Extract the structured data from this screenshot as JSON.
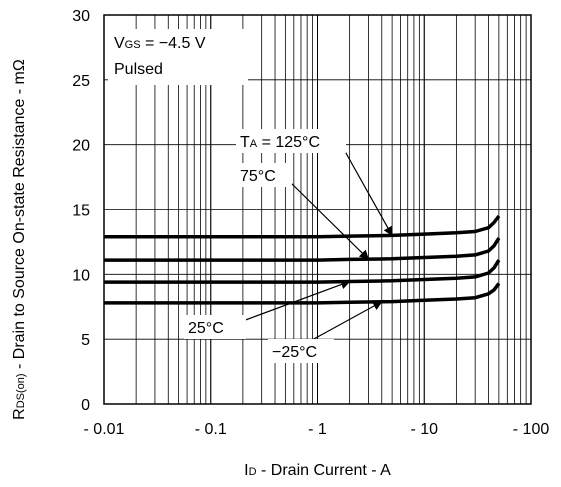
{
  "chart_data": {
    "type": "line",
    "xlabel_main": "I",
    "xlabel_sub": "D",
    "xlabel_rest": " - Drain Current - A",
    "ylabel_main": "R",
    "ylabel_sub": "DS(on)",
    "ylabel_rest": " - Drain to Source On-state Resistance - mΩ",
    "x_scale": "log",
    "xlim": [
      0.01,
      100
    ],
    "ylim": [
      0,
      30
    ],
    "x_ticks": [
      0.01,
      0.1,
      1,
      10,
      100
    ],
    "x_tick_labels": [
      "- 0.01",
      "- 0.1",
      "- 1",
      "- 10",
      "- 100"
    ],
    "y_ticks": [
      0,
      5,
      10,
      15,
      20,
      25,
      30
    ],
    "y_tick_labels": [
      "0",
      "5",
      "10",
      "15",
      "20",
      "25",
      "30"
    ],
    "grid": true,
    "legend_box": {
      "line1_main": "V",
      "line1_sub": "GS",
      "line1_rest": " = −4.5 V",
      "line2": "Pulsed"
    },
    "series": [
      {
        "name": "TA = 125°C",
        "x": [
          0.01,
          1,
          2,
          5,
          10,
          20,
          30,
          40,
          45,
          50
        ],
        "y": [
          12.9,
          12.9,
          12.95,
          13.0,
          13.1,
          13.2,
          13.3,
          13.6,
          14.0,
          14.5
        ]
      },
      {
        "name": "75°C",
        "x": [
          0.01,
          1,
          2,
          5,
          10,
          20,
          30,
          40,
          45,
          50
        ],
        "y": [
          11.1,
          11.1,
          11.15,
          11.2,
          11.3,
          11.4,
          11.5,
          11.8,
          12.2,
          12.8
        ]
      },
      {
        "name": "25°C",
        "x": [
          0.01,
          1,
          2,
          5,
          10,
          20,
          30,
          40,
          45,
          50
        ],
        "y": [
          9.4,
          9.4,
          9.45,
          9.5,
          9.6,
          9.7,
          9.8,
          10.1,
          10.5,
          11.1
        ]
      },
      {
        "name": "−25°C",
        "x": [
          0.01,
          1,
          2,
          5,
          10,
          20,
          30,
          40,
          45,
          50
        ],
        "y": [
          7.8,
          7.8,
          7.85,
          7.9,
          8.0,
          8.1,
          8.2,
          8.5,
          8.8,
          9.3
        ]
      }
    ],
    "annotations": [
      {
        "main": "T",
        "sub": "A",
        "rest": " = 125°C",
        "series": 0,
        "at_x": 5
      },
      {
        "main": "75°C",
        "sub": "",
        "rest": "",
        "series": 1,
        "at_x": 3
      },
      {
        "main": "25°C",
        "sub": "",
        "rest": "",
        "series": 2,
        "at_x": 2
      },
      {
        "main": "−25°C",
        "sub": "",
        "rest": "",
        "series": 3,
        "at_x": 4
      }
    ]
  }
}
